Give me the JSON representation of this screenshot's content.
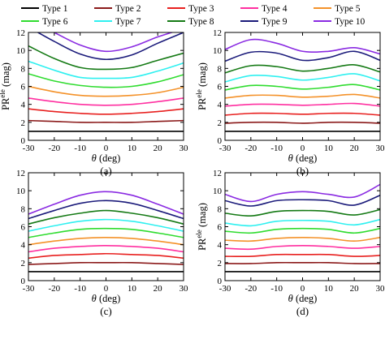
{
  "legend": {
    "entries": [
      {
        "label": "Type 1",
        "color": "#000000"
      },
      {
        "label": "Type 2",
        "color": "#8b1a1a"
      },
      {
        "label": "Type 3",
        "color": "#e8201f"
      },
      {
        "label": "Type 4",
        "color": "#ff2fa0"
      },
      {
        "label": "Type 5",
        "color": "#f4922a"
      },
      {
        "label": "Type 6",
        "color": "#2fdc2f"
      },
      {
        "label": "Type 7",
        "color": "#2ff0f0"
      },
      {
        "label": "Type 8",
        "color": "#157a15"
      },
      {
        "label": "Type 9",
        "color": "#1a1a7a"
      },
      {
        "label": "Type 10",
        "color": "#8a2be2"
      }
    ]
  },
  "chart_data": [
    {
      "type": "line",
      "panel_label": "(a)",
      "xlabel": "θ (deg)",
      "ylabel": "PR^ele (mag)",
      "xlim": [
        -30,
        30
      ],
      "ylim": [
        0,
        12
      ],
      "xticks": [
        -30,
        -20,
        -10,
        0,
        10,
        20,
        30
      ],
      "yticks": [
        0,
        2,
        4,
        6,
        8,
        10,
        12
      ],
      "x": [
        -30,
        -20,
        -10,
        0,
        10,
        20,
        30
      ],
      "series": [
        {
          "name": "Type 1",
          "values": [
            1.0,
            1.0,
            1.0,
            1.0,
            1.0,
            1.0,
            1.0
          ]
        },
        {
          "name": "Type 2",
          "values": [
            2.2,
            2.1,
            2.0,
            2.0,
            2.0,
            2.1,
            2.2
          ]
        },
        {
          "name": "Type 3",
          "values": [
            3.5,
            3.2,
            3.0,
            2.9,
            3.0,
            3.2,
            3.5
          ]
        },
        {
          "name": "Type 4",
          "values": [
            4.7,
            4.3,
            4.0,
            3.9,
            4.0,
            4.3,
            4.7
          ]
        },
        {
          "name": "Type 5",
          "values": [
            6.0,
            5.4,
            5.0,
            4.9,
            5.0,
            5.3,
            5.9
          ]
        },
        {
          "name": "Type 6",
          "values": [
            7.4,
            6.6,
            6.1,
            5.9,
            6.0,
            6.5,
            7.3
          ]
        },
        {
          "name": "Type 7",
          "values": [
            8.8,
            7.8,
            7.0,
            6.9,
            7.0,
            7.7,
            8.6
          ]
        },
        {
          "name": "Type 8",
          "values": [
            10.5,
            9.1,
            8.1,
            7.9,
            8.1,
            8.9,
            9.7
          ]
        },
        {
          "name": "Type 9",
          "values": [
            12.6,
            11.0,
            9.6,
            9.0,
            9.5,
            10.8,
            12.0
          ]
        },
        {
          "name": "Type 10",
          "values": [
            13.5,
            12.0,
            10.6,
            9.9,
            10.4,
            11.5,
            12.4
          ]
        }
      ]
    },
    {
      "type": "line",
      "panel_label": "(b)",
      "xlabel": "θ (deg)",
      "ylabel": "PR^ele (mag)",
      "xlim": [
        -30,
        30
      ],
      "ylim": [
        0,
        12
      ],
      "xticks": [
        -30,
        -20,
        -10,
        0,
        10,
        20,
        30
      ],
      "yticks": [
        0,
        2,
        4,
        6,
        8,
        10,
        12
      ],
      "x": [
        -30,
        -20,
        -10,
        0,
        10,
        20,
        30
      ],
      "series": [
        {
          "name": "Type 1",
          "values": [
            1.0,
            1.0,
            1.0,
            1.0,
            1.0,
            1.0,
            1.0
          ]
        },
        {
          "name": "Type 2",
          "values": [
            1.9,
            2.0,
            2.0,
            1.9,
            2.0,
            2.0,
            1.9
          ]
        },
        {
          "name": "Type 3",
          "values": [
            2.8,
            3.0,
            3.0,
            2.9,
            3.0,
            3.0,
            2.8
          ]
        },
        {
          "name": "Type 4",
          "values": [
            3.8,
            4.0,
            4.0,
            3.9,
            4.0,
            4.1,
            3.8
          ]
        },
        {
          "name": "Type 5",
          "values": [
            4.7,
            5.0,
            5.0,
            4.8,
            4.9,
            5.1,
            4.7
          ]
        },
        {
          "name": "Type 6",
          "values": [
            5.6,
            6.1,
            6.0,
            5.7,
            5.9,
            6.2,
            5.6
          ]
        },
        {
          "name": "Type 7",
          "values": [
            6.5,
            7.2,
            7.1,
            6.7,
            7.0,
            7.4,
            6.6
          ]
        },
        {
          "name": "Type 8",
          "values": [
            7.5,
            8.3,
            8.2,
            7.7,
            8.0,
            8.4,
            7.6
          ]
        },
        {
          "name": "Type 9",
          "values": [
            8.8,
            9.8,
            9.7,
            8.9,
            9.2,
            9.9,
            8.9
          ]
        },
        {
          "name": "Type 10",
          "values": [
            10.1,
            11.2,
            10.8,
            9.9,
            9.9,
            10.3,
            9.6
          ]
        }
      ]
    },
    {
      "type": "line",
      "panel_label": "(c)",
      "xlabel": "θ (deg)",
      "ylabel": "",
      "xlim": [
        -30,
        30
      ],
      "ylim": [
        0,
        12
      ],
      "xticks": [
        -30,
        -20,
        -10,
        0,
        10,
        20,
        30
      ],
      "yticks": [
        0,
        2,
        4,
        6,
        8,
        10,
        12
      ],
      "x": [
        -30,
        -20,
        -10,
        0,
        10,
        20,
        30
      ],
      "series": [
        {
          "name": "Type 1",
          "values": [
            1.0,
            1.0,
            1.0,
            1.0,
            1.0,
            1.0,
            1.0
          ]
        },
        {
          "name": "Type 2",
          "values": [
            1.8,
            1.9,
            2.0,
            2.0,
            2.0,
            1.9,
            1.8
          ]
        },
        {
          "name": "Type 3",
          "values": [
            2.5,
            2.8,
            2.9,
            3.0,
            2.9,
            2.8,
            2.5
          ]
        },
        {
          "name": "Type 4",
          "values": [
            3.2,
            3.6,
            3.8,
            3.9,
            3.8,
            3.6,
            3.2
          ]
        },
        {
          "name": "Type 5",
          "values": [
            4.0,
            4.4,
            4.7,
            4.8,
            4.7,
            4.4,
            4.0
          ]
        },
        {
          "name": "Type 6",
          "values": [
            4.8,
            5.3,
            5.7,
            5.8,
            5.7,
            5.3,
            4.8
          ]
        },
        {
          "name": "Type 7",
          "values": [
            5.5,
            6.1,
            6.6,
            6.8,
            6.6,
            6.1,
            5.5
          ]
        },
        {
          "name": "Type 8",
          "values": [
            6.3,
            7.0,
            7.5,
            7.8,
            7.5,
            7.0,
            6.3
          ]
        },
        {
          "name": "Type 9",
          "values": [
            6.9,
            7.8,
            8.6,
            8.9,
            8.6,
            7.8,
            6.9
          ]
        },
        {
          "name": "Type 10",
          "values": [
            7.4,
            8.5,
            9.5,
            9.9,
            9.5,
            8.5,
            7.4
          ]
        }
      ]
    },
    {
      "type": "line",
      "panel_label": "(d)",
      "xlabel": "θ (deg)",
      "ylabel": "PR^ele (mag)",
      "xlim": [
        -30,
        30
      ],
      "ylim": [
        0,
        12
      ],
      "xticks": [
        -30,
        -20,
        -10,
        0,
        10,
        20,
        30
      ],
      "yticks": [
        0,
        2,
        4,
        6,
        8,
        10,
        12
      ],
      "x": [
        -30,
        -20,
        -10,
        0,
        10,
        20,
        30
      ],
      "series": [
        {
          "name": "Type 1",
          "values": [
            1.0,
            1.0,
            1.0,
            1.0,
            1.0,
            1.0,
            1.0
          ]
        },
        {
          "name": "Type 2",
          "values": [
            1.9,
            1.9,
            2.0,
            2.0,
            2.0,
            1.9,
            1.9
          ]
        },
        {
          "name": "Type 3",
          "values": [
            2.7,
            2.7,
            2.9,
            2.9,
            2.9,
            2.7,
            2.8
          ]
        },
        {
          "name": "Type 4",
          "values": [
            3.6,
            3.5,
            3.8,
            3.9,
            3.8,
            3.6,
            3.8
          ]
        },
        {
          "name": "Type 5",
          "values": [
            4.5,
            4.4,
            4.7,
            4.8,
            4.7,
            4.4,
            4.8
          ]
        },
        {
          "name": "Type 6",
          "values": [
            5.5,
            5.3,
            5.7,
            5.8,
            5.7,
            5.3,
            5.8
          ]
        },
        {
          "name": "Type 7",
          "values": [
            6.4,
            6.1,
            6.6,
            6.7,
            6.6,
            6.2,
            6.8
          ]
        },
        {
          "name": "Type 8",
          "values": [
            7.5,
            7.2,
            7.7,
            7.8,
            7.7,
            7.3,
            7.9
          ]
        },
        {
          "name": "Type 9",
          "values": [
            8.9,
            8.3,
            8.9,
            9.0,
            8.9,
            8.4,
            9.5
          ]
        },
        {
          "name": "Type 10",
          "values": [
            9.6,
            8.8,
            9.6,
            9.9,
            9.6,
            9.3,
            10.7
          ]
        }
      ]
    }
  ]
}
